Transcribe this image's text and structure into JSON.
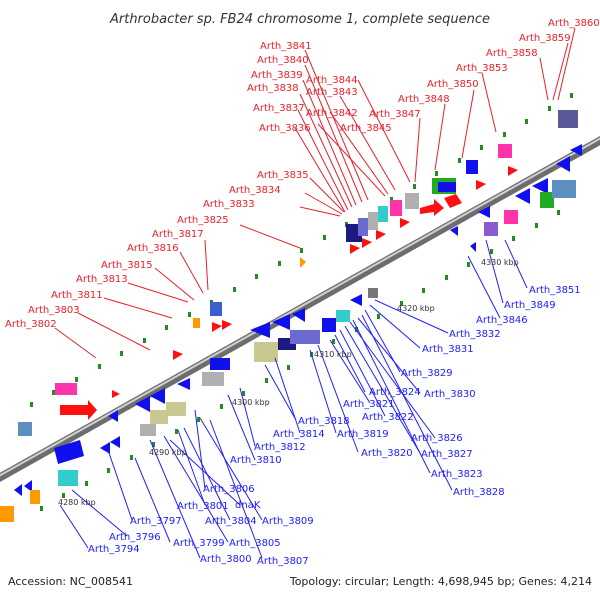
{
  "title": "Arthrobacter sp. FB24 chromosome 1, complete sequence",
  "footer": {
    "accession": "Accession: NC_008541",
    "topology": "Topology: circular; Length: 4,698,945 bp; Genes: 4,214"
  },
  "kbp_labels": [
    "4280 kbp",
    "4290 kbp",
    "4300 kbp",
    "4310 kbp",
    "4320 kbp",
    "4330 kbp"
  ],
  "red_labels": [
    "Arth_3860",
    "Arth_3859",
    "Arth_3858",
    "Arth_3853",
    "Arth_3850",
    "Arth_3848",
    "Arth_3847",
    "Arth_3845",
    "Arth_3844",
    "Arth_3843",
    "Arth_3842",
    "Arth_3841",
    "Arth_3840",
    "Arth_3839",
    "Arth_3838",
    "Arth_3837",
    "Arth_3836",
    "Arth_3835",
    "Arth_3834",
    "Arth_3833",
    "Arth_3825",
    "Arth_3817",
    "Arth_3816",
    "Arth_3815",
    "Arth_3813",
    "Arth_3811",
    "Arth_3803",
    "Arth_3802"
  ],
  "blue_labels": [
    "Arth_3851",
    "Arth_3849",
    "Arth_3846",
    "Arth_3832",
    "Arth_3831",
    "Arth_3829",
    "Arth_3830",
    "Arth_3824",
    "Arth_3821",
    "Arth_3822",
    "Arth_3818",
    "Arth_3814",
    "Arth_3819",
    "Arth_3826",
    "Arth_3827",
    "Arth_3820",
    "Arth_3812",
    "Arth_3810",
    "Arth_3823",
    "Arth_3828",
    "Arth_3806",
    "dnaK",
    "Arth_3801",
    "Arth_3804",
    "Arth_3809",
    "Arth_3797",
    "Arth_3796",
    "Arth_3799",
    "Arth_3805",
    "Arth_3794",
    "Arth_3800",
    "Arth_3807"
  ],
  "colors": {
    "red": "#e8202a",
    "blue": "#2020ff",
    "backbone": "#777777",
    "gene_red": "#ff1010",
    "gene_blue": "#1010ee",
    "khaki": "#c8c890",
    "cyan": "#33cccc",
    "magenta": "#ff33aa",
    "orange": "#ff9900",
    "steel": "#5a8fc0",
    "green": "#22aa22",
    "grey": "#b0b0b0"
  }
}
